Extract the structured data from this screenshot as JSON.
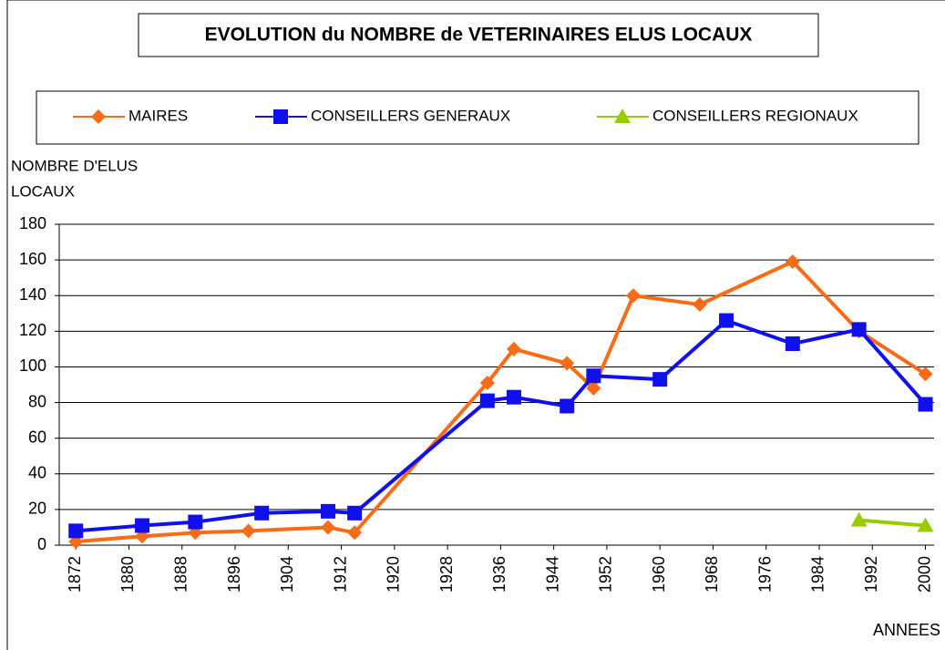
{
  "chart_data": {
    "type": "line",
    "title": "EVOLUTION du NOMBRE de VETERINAIRES ELUS LOCAUX",
    "ylabel_lines": [
      "NOMBRE D'ELUS",
      "LOCAUX"
    ],
    "xlabel": "ANNEES",
    "xlim": [
      1869.5,
      2001.3
    ],
    "xticks": [
      1872,
      1880,
      1888,
      1896,
      1904,
      1912,
      1920,
      1928,
      1936,
      1944,
      1952,
      1960,
      1968,
      1976,
      1984,
      1992,
      2000
    ],
    "ylim": [
      0,
      180
    ],
    "yticks": [
      0,
      20,
      40,
      60,
      80,
      100,
      120,
      140,
      160,
      180
    ],
    "grid": true,
    "series": [
      {
        "name": "MAIRES",
        "color": "#f96b14",
        "marker": "diamond",
        "x": [
          1872,
          1882,
          1890,
          1898,
          1910,
          1914,
          1934,
          1938,
          1946,
          1950,
          1956,
          1966,
          1980,
          1990,
          2000
        ],
        "values": [
          2,
          5,
          7,
          8,
          10,
          7,
          91,
          110,
          102,
          88,
          140,
          135,
          159,
          120,
          96
        ]
      },
      {
        "name": "CONSEILLERS GENERAUX",
        "color": "#1010ee",
        "marker": "square",
        "x": [
          1872,
          1882,
          1890,
          1900,
          1910,
          1914,
          1934,
          1938,
          1946,
          1950,
          1960,
          1970,
          1980,
          1990,
          2000
        ],
        "values": [
          8,
          11,
          13,
          18,
          19,
          18,
          81,
          83,
          78,
          95,
          93,
          126,
          113,
          121,
          79
        ]
      },
      {
        "name": "CONSEILLERS REGIONAUX",
        "color": "#99cc00",
        "marker": "triangle",
        "x": [
          1990,
          2000
        ],
        "values": [
          14,
          11
        ]
      }
    ]
  }
}
